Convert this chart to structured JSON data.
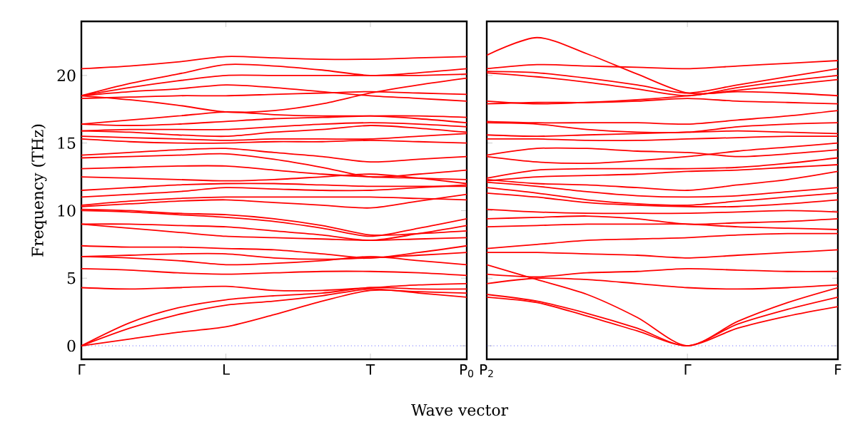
{
  "chart_data": [
    {
      "type": "line",
      "ylabel": "Frequency (THz)",
      "xlabel": "Wave vector",
      "categories": [
        "Γ",
        null,
        null,
        "L",
        null,
        null,
        "T",
        null,
        "P$_{0}$"
      ],
      "ylim": [
        -1,
        24
      ],
      "yticks": [
        0,
        5,
        10,
        15,
        20
      ],
      "ref_lines": [
        {
          "axis": "y",
          "value": 0,
          "color": "#0000ff",
          "line_style": "dotted"
        }
      ],
      "series": [
        {
          "color": "#ff0000",
          "values": [
            20.5,
            20.7,
            21.0,
            21.4,
            21.3,
            21.2,
            21.2,
            21.3,
            21.4
          ]
        },
        {
          "color": "#ff0000",
          "values": [
            18.5,
            19.4,
            20.1,
            20.8,
            20.7,
            20.4,
            20.0,
            20.2,
            20.5
          ]
        },
        {
          "color": "#ff0000",
          "values": [
            18.5,
            19.1,
            19.6,
            20.0,
            20.0,
            20.0,
            20.0,
            20.0,
            20.1
          ]
        },
        {
          "color": "#ff0000",
          "values": [
            18.5,
            18.8,
            19.0,
            19.3,
            19.1,
            18.8,
            18.5,
            18.3,
            18.1
          ]
        },
        {
          "color": "#ff0000",
          "values": [
            18.5,
            18.2,
            17.8,
            17.3,
            17.4,
            17.9,
            18.7,
            19.3,
            19.8
          ]
        },
        {
          "color": "#ff0000",
          "values": [
            18.3,
            18.4,
            18.5,
            18.5,
            18.6,
            18.7,
            18.8,
            18.7,
            18.6
          ]
        },
        {
          "color": "#ff0000",
          "values": [
            16.4,
            16.7,
            17.0,
            17.3,
            17.1,
            17.0,
            17.0,
            16.8,
            16.5
          ]
        },
        {
          "color": "#ff0000",
          "values": [
            16.4,
            16.3,
            16.4,
            16.6,
            16.8,
            16.9,
            17.0,
            17.0,
            16.9
          ]
        },
        {
          "color": "#ff0000",
          "values": [
            15.9,
            16.0,
            16.0,
            16.0,
            16.2,
            16.4,
            16.5,
            16.4,
            16.2
          ]
        },
        {
          "color": "#ff0000",
          "values": [
            15.9,
            15.8,
            15.6,
            15.5,
            15.8,
            16.0,
            16.3,
            16.1,
            15.8
          ]
        },
        {
          "color": "#ff0000",
          "values": [
            15.5,
            15.4,
            15.3,
            15.2,
            15.3,
            15.3,
            15.3,
            15.5,
            15.7
          ]
        },
        {
          "color": "#ff0000",
          "values": [
            15.3,
            15.1,
            15.0,
            15.0,
            15.1,
            15.1,
            15.2,
            15.1,
            15.0
          ]
        },
        {
          "color": "#ff0000",
          "values": [
            14.1,
            14.3,
            14.5,
            14.6,
            14.3,
            14.0,
            13.6,
            13.8,
            14.0
          ]
        },
        {
          "color": "#ff0000",
          "values": [
            13.9,
            14.0,
            14.1,
            14.2,
            13.8,
            13.2,
            12.5,
            12.7,
            13.0
          ]
        },
        {
          "color": "#ff0000",
          "values": [
            13.1,
            13.2,
            13.3,
            13.3,
            13.0,
            12.7,
            12.5,
            12.4,
            12.3
          ]
        },
        {
          "color": "#ff0000",
          "values": [
            12.5,
            12.4,
            12.3,
            12.2,
            12.3,
            12.5,
            12.7,
            12.4,
            12.0
          ]
        },
        {
          "color": "#ff0000",
          "values": [
            11.5,
            11.7,
            11.9,
            12.0,
            12.0,
            11.9,
            11.8,
            11.8,
            11.8
          ]
        },
        {
          "color": "#ff0000",
          "values": [
            11.0,
            11.2,
            11.4,
            11.7,
            11.6,
            11.5,
            11.5,
            11.7,
            11.9
          ]
        },
        {
          "color": "#ff0000",
          "values": [
            10.4,
            10.7,
            10.9,
            11.0,
            11.0,
            11.0,
            11.0,
            10.9,
            10.8
          ]
        },
        {
          "color": "#ff0000",
          "values": [
            10.3,
            10.5,
            10.7,
            10.8,
            10.6,
            10.4,
            10.2,
            10.7,
            11.2
          ]
        },
        {
          "color": "#ff0000",
          "values": [
            10.1,
            10.0,
            9.8,
            9.7,
            9.4,
            8.9,
            8.2,
            8.3,
            8.5
          ]
        },
        {
          "color": "#ff0000",
          "values": [
            10.0,
            9.9,
            9.7,
            9.5,
            9.2,
            8.7,
            8.1,
            8.7,
            9.4
          ]
        },
        {
          "color": "#ff0000",
          "values": [
            9.0,
            9.0,
            8.9,
            8.8,
            8.5,
            8.2,
            7.8,
            8.3,
            8.9
          ]
        },
        {
          "color": "#ff0000",
          "values": [
            9.0,
            8.7,
            8.4,
            8.1,
            8.0,
            7.9,
            7.8,
            7.9,
            8.0
          ]
        },
        {
          "color": "#ff0000",
          "values": [
            7.4,
            7.3,
            7.3,
            7.2,
            7.1,
            6.8,
            6.5,
            6.9,
            7.4
          ]
        },
        {
          "color": "#ff0000",
          "values": [
            6.6,
            6.7,
            6.8,
            6.8,
            6.5,
            6.4,
            6.5,
            6.7,
            6.9
          ]
        },
        {
          "color": "#ff0000",
          "values": [
            6.6,
            6.5,
            6.3,
            6.0,
            6.1,
            6.3,
            6.6,
            6.3,
            6.0
          ]
        },
        {
          "color": "#ff0000",
          "values": [
            5.7,
            5.6,
            5.4,
            5.3,
            5.4,
            5.5,
            5.5,
            5.4,
            5.2
          ]
        },
        {
          "color": "#ff0000",
          "values": [
            4.3,
            4.2,
            4.3,
            4.4,
            4.1,
            4.1,
            4.3,
            4.5,
            4.6
          ]
        },
        {
          "color": "#ff0000",
          "values": [
            0,
            1.7,
            2.8,
            3.4,
            3.7,
            3.9,
            4.3,
            4.2,
            4.2
          ]
        },
        {
          "color": "#ff0000",
          "values": [
            0,
            1.3,
            2.3,
            3.0,
            3.3,
            3.7,
            4.2,
            3.9,
            3.6
          ]
        },
        {
          "color": "#ff0000",
          "values": [
            0,
            0.5,
            1.0,
            1.4,
            2.3,
            3.3,
            4.1,
            4.0,
            3.9
          ]
        }
      ]
    },
    {
      "type": "line",
      "categories": [
        "P$_{2}$",
        null,
        null,
        null,
        "Γ",
        null,
        null,
        "F"
      ],
      "ylim": [
        -1,
        24
      ],
      "tick_labels": "x",
      "yticks": [
        0,
        5,
        10,
        15,
        20
      ],
      "ref_lines": [
        {
          "axis": "y",
          "value": 0,
          "color": "#0000ff",
          "line_style": "dotted"
        }
      ],
      "series": [
        {
          "color": "#ff0000",
          "values": [
            21.5,
            22.8,
            21.6,
            20.1,
            18.7,
            18.8,
            18.7,
            18.5
          ]
        },
        {
          "color": "#ff0000",
          "values": [
            20.5,
            20.8,
            20.7,
            20.6,
            20.5,
            20.7,
            20.9,
            21.1
          ]
        },
        {
          "color": "#ff0000",
          "values": [
            20.3,
            20.2,
            19.8,
            19.3,
            18.7,
            19.3,
            19.9,
            20.5
          ]
        },
        {
          "color": "#ff0000",
          "values": [
            20.2,
            19.9,
            19.5,
            19.0,
            18.5,
            19.1,
            19.6,
            20.0
          ]
        },
        {
          "color": "#ff0000",
          "values": [
            18.1,
            17.9,
            18.0,
            18.2,
            18.5,
            18.9,
            19.3,
            19.7
          ]
        },
        {
          "color": "#ff0000",
          "values": [
            17.9,
            18.0,
            18.0,
            18.1,
            18.3,
            18.1,
            18.0,
            17.9
          ]
        },
        {
          "color": "#ff0000",
          "values": [
            16.6,
            16.5,
            16.5,
            16.5,
            16.4,
            16.7,
            17.0,
            17.4
          ]
        },
        {
          "color": "#ff0000",
          "values": [
            16.5,
            16.4,
            16.0,
            15.8,
            15.8,
            16.2,
            16.4,
            16.5
          ]
        },
        {
          "color": "#ff0000",
          "values": [
            15.6,
            15.5,
            15.6,
            15.7,
            15.8,
            15.9,
            15.8,
            15.7
          ]
        },
        {
          "color": "#ff0000",
          "values": [
            15.3,
            15.3,
            15.2,
            15.2,
            15.3,
            15.4,
            15.5,
            15.5
          ]
        },
        {
          "color": "#ff0000",
          "values": [
            14.0,
            13.6,
            13.5,
            13.7,
            14.0,
            14.4,
            14.7,
            15.0
          ]
        },
        {
          "color": "#ff0000",
          "values": [
            14.1,
            14.6,
            14.6,
            14.4,
            14.3,
            14.0,
            14.2,
            14.5
          ]
        },
        {
          "color": "#ff0000",
          "values": [
            12.4,
            13.0,
            13.1,
            13.1,
            13.1,
            13.2,
            13.5,
            13.9
          ]
        },
        {
          "color": "#ff0000",
          "values": [
            12.2,
            12.5,
            12.6,
            12.7,
            12.9,
            13.0,
            13.2,
            13.4
          ]
        },
        {
          "color": "#ff0000",
          "values": [
            12.3,
            12.0,
            11.9,
            11.7,
            11.5,
            11.9,
            12.3,
            12.9
          ]
        },
        {
          "color": "#ff0000",
          "values": [
            12.1,
            11.8,
            11.4,
            11.1,
            11.0,
            11.1,
            11.4,
            11.7
          ]
        },
        {
          "color": "#ff0000",
          "values": [
            11.7,
            11.3,
            10.8,
            10.5,
            10.4,
            10.7,
            11.0,
            11.3
          ]
        },
        {
          "color": "#ff0000",
          "values": [
            11.3,
            11.0,
            10.6,
            10.4,
            10.3,
            10.3,
            10.5,
            10.8
          ]
        },
        {
          "color": "#ff0000",
          "values": [
            10.1,
            9.9,
            9.8,
            9.8,
            9.8,
            9.9,
            10.0,
            9.9
          ]
        },
        {
          "color": "#ff0000",
          "values": [
            9.4,
            9.5,
            9.6,
            9.4,
            9.0,
            9.1,
            9.2,
            9.4
          ]
        },
        {
          "color": "#ff0000",
          "values": [
            8.8,
            8.9,
            9.0,
            9.0,
            9.0,
            8.8,
            8.7,
            8.6
          ]
        },
        {
          "color": "#ff0000",
          "values": [
            7.2,
            7.5,
            7.8,
            7.9,
            8.0,
            8.2,
            8.3,
            8.3
          ]
        },
        {
          "color": "#ff0000",
          "values": [
            6.9,
            6.9,
            6.8,
            6.7,
            6.5,
            6.7,
            6.9,
            7.1
          ]
        },
        {
          "color": "#ff0000",
          "values": [
            6.0,
            4.9,
            3.8,
            2.1,
            0,
            1.8,
            3.2,
            4.3
          ]
        },
        {
          "color": "#ff0000",
          "values": [
            5.3,
            5.1,
            5.4,
            5.5,
            5.7,
            5.6,
            5.5,
            5.5
          ]
        },
        {
          "color": "#ff0000",
          "values": [
            4.6,
            5.0,
            4.9,
            4.6,
            4.3,
            4.2,
            4.3,
            4.5
          ]
        },
        {
          "color": "#ff0000",
          "values": [
            3.8,
            3.3,
            2.4,
            1.3,
            0,
            1.6,
            2.7,
            3.6
          ]
        },
        {
          "color": "#ff0000",
          "values": [
            3.6,
            3.2,
            2.2,
            1.1,
            0,
            1.3,
            2.2,
            2.9
          ]
        }
      ]
    }
  ]
}
